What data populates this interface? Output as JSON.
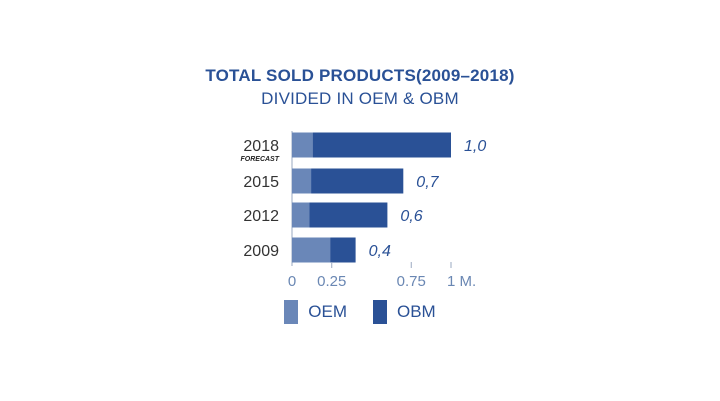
{
  "chart_data": {
    "type": "bar",
    "orientation": "horizontal",
    "stacked": true,
    "title": "TOTAL SOLD PRODUCTS(2009–2018)",
    "subtitle": "DIVIDED IN OEM & OBM",
    "categories": [
      "2018",
      "2015",
      "2012",
      "2009"
    ],
    "category_notes": [
      "FORECAST",
      "",
      "",
      ""
    ],
    "series": [
      {
        "name": "OEM",
        "color": "#6a87b8",
        "values": [
          0.13,
          0.12,
          0.11,
          0.24
        ]
      },
      {
        "name": "OBM",
        "color": "#2a5196",
        "values": [
          0.87,
          0.58,
          0.49,
          0.16
        ]
      }
    ],
    "totals": [
      1.0,
      0.7,
      0.6,
      0.4
    ],
    "total_labels": [
      "1,0",
      "0,7",
      "0,6",
      "0,4"
    ],
    "xticks": [
      0,
      0.25,
      0.75,
      1
    ],
    "xtick_labels": [
      "0",
      "0.25",
      "0.75",
      "1 M."
    ],
    "xlim": [
      0,
      1
    ],
    "legend_position": "bottom",
    "grid": false
  }
}
